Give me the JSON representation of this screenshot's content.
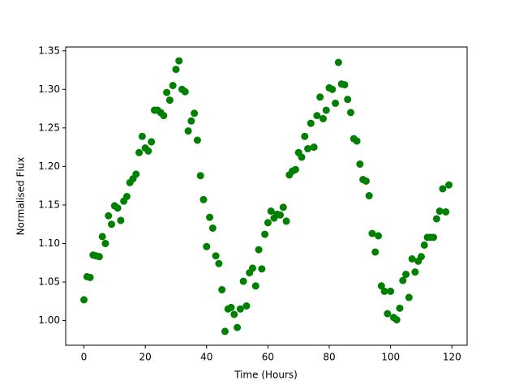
{
  "chart_data": {
    "type": "scatter",
    "x_label": "Time (Hours)",
    "y_label": "Normalised Flux",
    "color": "#008000",
    "x": [
      0,
      1,
      2,
      3,
      4,
      5,
      6,
      7,
      8,
      9,
      10,
      11,
      12,
      13,
      14,
      15,
      16,
      17,
      18,
      19,
      20,
      21,
      22,
      23,
      24,
      25,
      26,
      27,
      28,
      29,
      30,
      31,
      32,
      33,
      34,
      35,
      36,
      37,
      38,
      39,
      40,
      41,
      42,
      43,
      44,
      45,
      46,
      47,
      48,
      49,
      50,
      51,
      52,
      53,
      54,
      55,
      56,
      57,
      58,
      59,
      60,
      61,
      62,
      63,
      64,
      65,
      66,
      67,
      68,
      69,
      70,
      71,
      72,
      73,
      74,
      75,
      76,
      77,
      78,
      79,
      80,
      81,
      82,
      83,
      84,
      85,
      86,
      87,
      88,
      89,
      90,
      91,
      92,
      93,
      94,
      95,
      96,
      97,
      98,
      99,
      100,
      101,
      102,
      103,
      104,
      105,
      106,
      107,
      108,
      109,
      110,
      111,
      112,
      113,
      114,
      115,
      116,
      117,
      118,
      119
    ],
    "values": [
      1.027,
      1.057,
      1.056,
      1.085,
      1.084,
      1.083,
      1.109,
      1.1,
      1.136,
      1.125,
      1.149,
      1.146,
      1.13,
      1.155,
      1.161,
      1.179,
      1.184,
      1.19,
      1.218,
      1.239,
      1.224,
      1.22,
      1.232,
      1.273,
      1.273,
      1.27,
      1.266,
      1.296,
      1.286,
      1.305,
      1.326,
      1.337,
      1.3,
      1.297,
      1.246,
      1.259,
      1.269,
      1.234,
      1.188,
      1.157,
      1.096,
      1.134,
      1.12,
      1.084,
      1.074,
      1.04,
      0.986,
      1.015,
      1.017,
      1.008,
      0.991,
      1.015,
      1.051,
      1.019,
      1.062,
      1.068,
      1.045,
      1.092,
      1.067,
      1.112,
      1.127,
      1.142,
      1.133,
      1.138,
      1.137,
      1.147,
      1.129,
      1.189,
      1.194,
      1.196,
      1.218,
      1.212,
      1.239,
      1.223,
      1.256,
      1.225,
      1.266,
      1.29,
      1.262,
      1.273,
      1.302,
      1.3,
      1.282,
      1.335,
      1.307,
      1.306,
      1.287,
      1.27,
      1.236,
      1.233,
      1.203,
      1.183,
      1.181,
      1.162,
      1.113,
      1.089,
      1.11,
      1.045,
      1.038,
      1.009,
      1.038,
      1.004,
      1.001,
      1.016,
      1.052,
      1.06,
      1.03,
      1.08,
      1.063,
      1.077,
      1.083,
      1.098,
      1.108,
      1.108,
      1.108,
      1.132,
      1.142,
      1.171,
      1.141,
      1.176
    ],
    "xlim": [
      -5.95,
      124.95
    ],
    "xticks": [
      0,
      20,
      40,
      60,
      80,
      100,
      120
    ],
    "ylim": [
      0.968,
      1.355
    ],
    "yticks": [
      {
        "value": 1.0,
        "label": "1.00"
      },
      {
        "value": 1.05,
        "label": "1.05"
      },
      {
        "value": 1.1,
        "label": "1.10"
      },
      {
        "value": 1.15,
        "label": "1.15"
      },
      {
        "value": 1.2,
        "label": "1.20"
      },
      {
        "value": 1.25,
        "label": "1.25"
      },
      {
        "value": 1.3,
        "label": "1.30"
      },
      {
        "value": 1.35,
        "label": "1.35"
      }
    ]
  }
}
